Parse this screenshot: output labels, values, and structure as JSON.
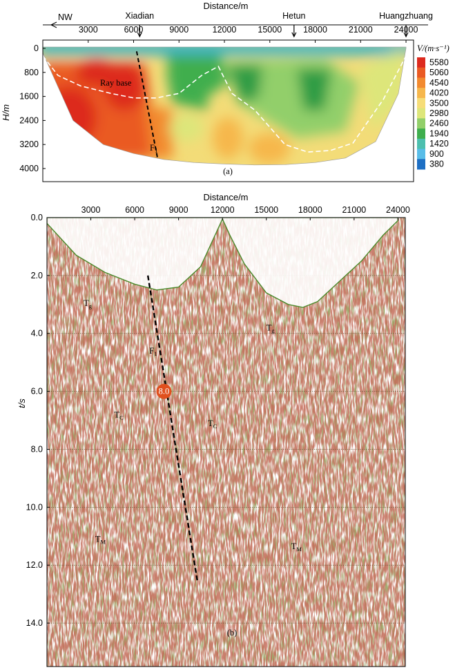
{
  "chart_data": [
    {
      "panel": "(a)",
      "type": "heatmap",
      "xlabel": "Distance/m",
      "ylabel": "H/m",
      "colorbar_label": "V/(m·s⁻¹)",
      "x_ticks": [
        3000,
        6000,
        9000,
        12000,
        15000,
        18000,
        21000,
        24000
      ],
      "y_ticks": [
        0,
        800,
        1600,
        2400,
        3200,
        4000
      ],
      "xlim": [
        0,
        24500
      ],
      "ylim": [
        0,
        4300
      ],
      "y_inverted": true,
      "colorbar": {
        "values": [
          5580,
          5060,
          4540,
          4020,
          3500,
          2980,
          2460,
          1940,
          1420,
          900,
          380
        ],
        "colors": [
          "#dd2a1e",
          "#ea5a23",
          "#f28a2f",
          "#f6b74c",
          "#f6dd78",
          "#dde67a",
          "#92cf6a",
          "#3fae4e",
          "#4dbfae",
          "#59bde8",
          "#1d6fc4"
        ]
      },
      "stations": [
        {
          "name": "Xiadian",
          "x": 6400
        },
        {
          "name": "Hetun",
          "x": 16600
        },
        {
          "name": "Huangzhuang",
          "x": 24000
        }
      ],
      "direction_label": "NW",
      "ray_base_label": "Ray base",
      "fault": {
        "label": "F",
        "subscript": "1",
        "x": [
          6200,
          7600
        ],
        "h": [
          100,
          3700
        ]
      },
      "velocity_boundary": {
        "x": [
          0,
          1000,
          2500,
          4500,
          6000,
          7500,
          9000,
          10500,
          11600,
          12500,
          14000,
          16000,
          17500,
          19000,
          20500,
          22500,
          24000
        ],
        "h": [
          250,
          900,
          1250,
          1500,
          1650,
          1650,
          1500,
          900,
          600,
          1500,
          2050,
          3200,
          3450,
          3400,
          3150,
          1700,
          250
        ]
      },
      "ray_coverage_depth": {
        "x": [
          0,
          2000,
          4000,
          6000,
          8000,
          10000,
          12000,
          14000,
          16000,
          18000,
          20000,
          22000,
          23500,
          24000
        ],
        "h": [
          150,
          2400,
          3200,
          3500,
          3700,
          3800,
          3850,
          3880,
          3870,
          3800,
          3650,
          3100,
          1500,
          0
        ]
      }
    },
    {
      "panel": "(b)",
      "type": "seismic section",
      "xlabel": "Distance/m",
      "ylabel": "t/s",
      "x_ticks": [
        3000,
        6000,
        9000,
        12000,
        15000,
        18000,
        21000,
        24000
      ],
      "y_ticks": [
        "0.0",
        "2.0",
        "4.0",
        "6.0",
        "8.0",
        "10.0",
        "12.0",
        "14.0"
      ],
      "xlim": [
        0,
        24500
      ],
      "ylim": [
        0,
        15.5
      ],
      "y_inverted": true,
      "fault": {
        "label": "F",
        "subscript": "1",
        "x": [
          6900,
          10300
        ],
        "t": [
          2.0,
          12.6
        ]
      },
      "event_marker": {
        "label": "8.0",
        "x": 8000,
        "t": 6.0,
        "color": "#e0501e"
      },
      "phases": [
        {
          "label": "T",
          "subscript": "g",
          "x": 2500,
          "t": 3.05
        },
        {
          "label": "T",
          "subscript": "g",
          "x": 15000,
          "t": 3.9
        },
        {
          "label": "F",
          "subscript": "1",
          "x": 7000,
          "t": 4.7
        },
        {
          "label": "T",
          "subscript": "C",
          "x": 4600,
          "t": 6.9
        },
        {
          "label": "T",
          "subscript": "C",
          "x": 11000,
          "t": 7.2
        },
        {
          "label": "T",
          "subscript": "M",
          "x": 3300,
          "t": 11.2
        },
        {
          "label": "T",
          "subscript": "M",
          "x": 16700,
          "t": 11.45
        }
      ],
      "first_arrival": {
        "x": [
          0,
          2000,
          4000,
          6000,
          7500,
          9000,
          10500,
          11500,
          12000,
          12500,
          13500,
          15000,
          16500,
          17500,
          18500,
          20000,
          21500,
          23000,
          24000
        ],
        "t": [
          0.2,
          1.3,
          1.9,
          2.3,
          2.5,
          2.4,
          1.7,
          0.6,
          0.05,
          0.6,
          1.6,
          2.6,
          3.0,
          3.1,
          2.9,
          2.2,
          1.5,
          0.6,
          0.1
        ]
      }
    }
  ]
}
